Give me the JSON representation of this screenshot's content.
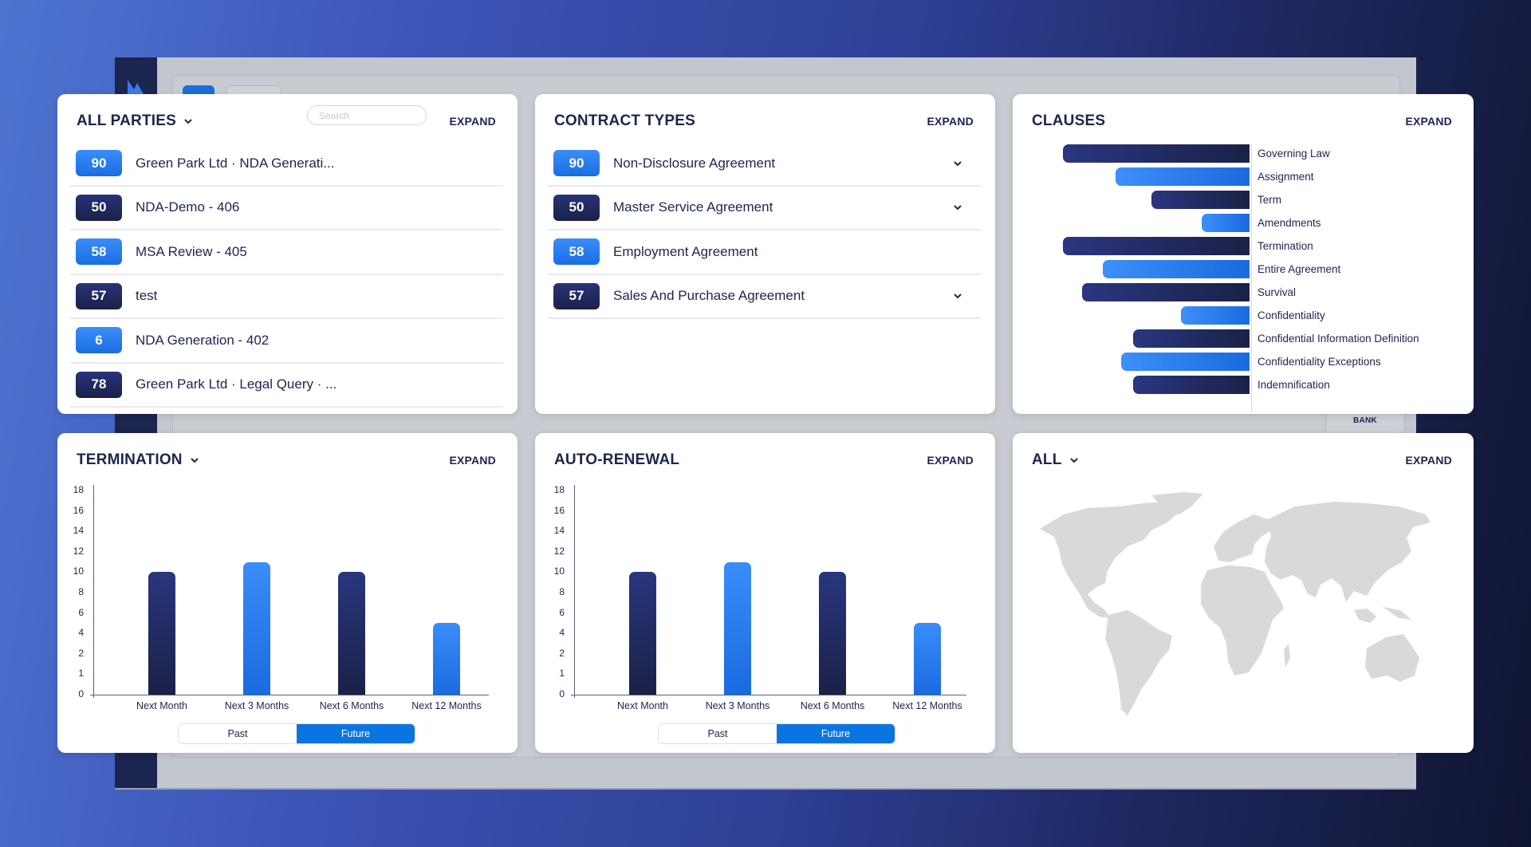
{
  "background_app": {
    "bank_label": "BANK"
  },
  "parties_card": {
    "title": "ALL PARTIES",
    "search_placeholder": "Search",
    "expand_label": "EXPAND",
    "items": [
      {
        "count": "90",
        "label": "Green Park Ltd · NDA Generati...",
        "style": "light"
      },
      {
        "count": "50",
        "label": "NDA-Demo - 406",
        "style": "dark"
      },
      {
        "count": "58",
        "label": "MSA Review - 405",
        "style": "light"
      },
      {
        "count": "57",
        "label": "test",
        "style": "dark"
      },
      {
        "count": "6",
        "label": "NDA Generation - 402",
        "style": "light"
      },
      {
        "count": "78",
        "label": "Green Park Ltd · Legal Query · ...",
        "style": "dark"
      }
    ]
  },
  "contract_types_card": {
    "title": "CONTRACT TYPES",
    "expand_label": "EXPAND",
    "items": [
      {
        "count": "90",
        "label": "Non-Disclosure Agreement",
        "style": "light",
        "has_chevron": true
      },
      {
        "count": "50",
        "label": "Master Service Agreement",
        "style": "dark",
        "has_chevron": true
      },
      {
        "count": "58",
        "label": "Employment Agreement",
        "style": "light",
        "has_chevron": false
      },
      {
        "count": "57",
        "label": "Sales And Purchase Agreement",
        "style": "dark",
        "has_chevron": true
      }
    ]
  },
  "clauses_card": {
    "title": "CLAUSES",
    "expand_label": "EXPAND"
  },
  "termination_card": {
    "title": "TERMINATION",
    "expand_label": "EXPAND",
    "toggle": {
      "past": "Past",
      "future": "Future",
      "selected": "Future"
    }
  },
  "auto_renewal_card": {
    "title": "AUTO-RENEWAL",
    "expand_label": "EXPAND",
    "toggle": {
      "past": "Past",
      "future": "Future",
      "selected": "Future"
    }
  },
  "map_card": {
    "title": "ALL",
    "expand_label": "EXPAND"
  },
  "colors": {
    "navy": "#1c2550",
    "bar_dark": "#1a2147",
    "bar_light": "#2f82f4",
    "toggle_active": "#0a74e0",
    "map_land": "#d9d9d9"
  },
  "chart_data": [
    {
      "type": "bar",
      "title": "CLAUSES",
      "orientation": "horizontal",
      "categories": [
        "Governing Law",
        "Assignment",
        "Term",
        "Amendments",
        "Termination",
        "Entire Agreement",
        "Survival",
        "Confidentiality",
        "Confidential Information Definition",
        "Confidentiality Exceptions",
        "Indemnification"
      ],
      "values": [
        234,
        168,
        123,
        60,
        234,
        184,
        210,
        86,
        146,
        161,
        146
      ],
      "styles": [
        "dark",
        "light",
        "dark",
        "light",
        "dark",
        "light",
        "dark",
        "light",
        "dark",
        "light",
        "dark"
      ],
      "xlabel": "",
      "ylabel": "",
      "note": "values are relative bar lengths (no axis ticks shown)"
    },
    {
      "type": "bar",
      "title": "TERMINATION",
      "categories": [
        "Next Month",
        "Next 3 Months",
        "Next 6 Months",
        "Next 12 Months"
      ],
      "values": [
        10,
        11,
        10,
        5
      ],
      "styles": [
        "dark",
        "light",
        "dark",
        "light"
      ],
      "yticks": [
        "0",
        "1",
        "2",
        "4",
        "6",
        "8",
        "10",
        "12",
        "14",
        "16",
        "18"
      ],
      "ylim": [
        0,
        18
      ],
      "xlabel": "",
      "ylabel": ""
    },
    {
      "type": "bar",
      "title": "AUTO-RENEWAL",
      "categories": [
        "Next Month",
        "Next 3 Months",
        "Next 6 Months",
        "Next 12 Months"
      ],
      "values": [
        10,
        11,
        10,
        5
      ],
      "styles": [
        "dark",
        "light",
        "dark",
        "light"
      ],
      "yticks": [
        "0",
        "1",
        "2",
        "4",
        "6",
        "8",
        "10",
        "12",
        "14",
        "16",
        "18"
      ],
      "ylim": [
        0,
        18
      ],
      "xlabel": "",
      "ylabel": ""
    }
  ]
}
